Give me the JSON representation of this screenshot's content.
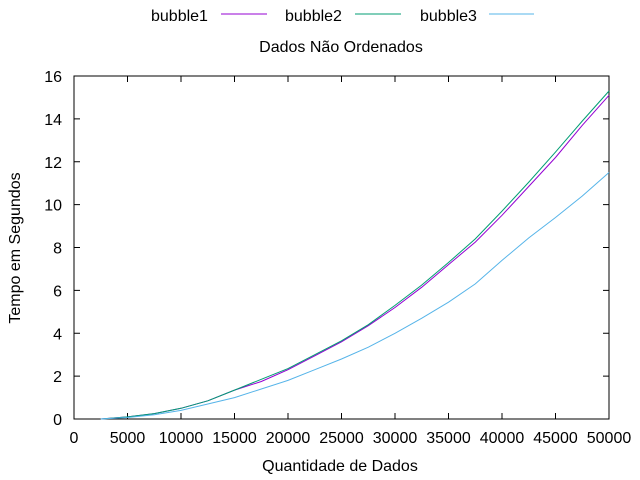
{
  "chart_data": {
    "type": "line",
    "title": "Dados Não Ordenados",
    "xlabel": "Quantidade de Dados",
    "ylabel": "Tempo em Segundos",
    "xlim": [
      0,
      50000
    ],
    "ylim": [
      0,
      16
    ],
    "xticks": [
      0,
      5000,
      10000,
      15000,
      20000,
      25000,
      30000,
      35000,
      40000,
      45000,
      50000
    ],
    "yticks": [
      0,
      2,
      4,
      6,
      8,
      10,
      12,
      14,
      16
    ],
    "grid": false,
    "legend_position": "top",
    "x": [
      2500,
      5000,
      7500,
      10000,
      12500,
      15000,
      17500,
      20000,
      22500,
      25000,
      27500,
      30000,
      32500,
      35000,
      37500,
      40000,
      42500,
      45000,
      47500,
      50000
    ],
    "series": [
      {
        "name": "bubble1",
        "color": "#9400d3",
        "values": [
          0.0,
          0.1,
          0.25,
          0.5,
          0.85,
          1.35,
          1.75,
          2.3,
          2.95,
          3.6,
          4.35,
          5.2,
          6.15,
          7.2,
          8.25,
          9.5,
          10.85,
          12.2,
          13.7,
          15.1
        ]
      },
      {
        "name": "bubble2",
        "color": "#009e73",
        "values": [
          0.0,
          0.1,
          0.25,
          0.5,
          0.85,
          1.35,
          1.85,
          2.35,
          3.0,
          3.65,
          4.4,
          5.3,
          6.25,
          7.3,
          8.4,
          9.7,
          11.05,
          12.45,
          13.9,
          15.3
        ]
      },
      {
        "name": "bubble3",
        "color": "#56b4e9",
        "values": [
          0.0,
          0.07,
          0.2,
          0.4,
          0.7,
          1.0,
          1.4,
          1.8,
          2.3,
          2.8,
          3.35,
          4.0,
          4.7,
          5.45,
          6.3,
          7.4,
          8.45,
          9.4,
          10.4,
          11.5
        ]
      }
    ]
  }
}
